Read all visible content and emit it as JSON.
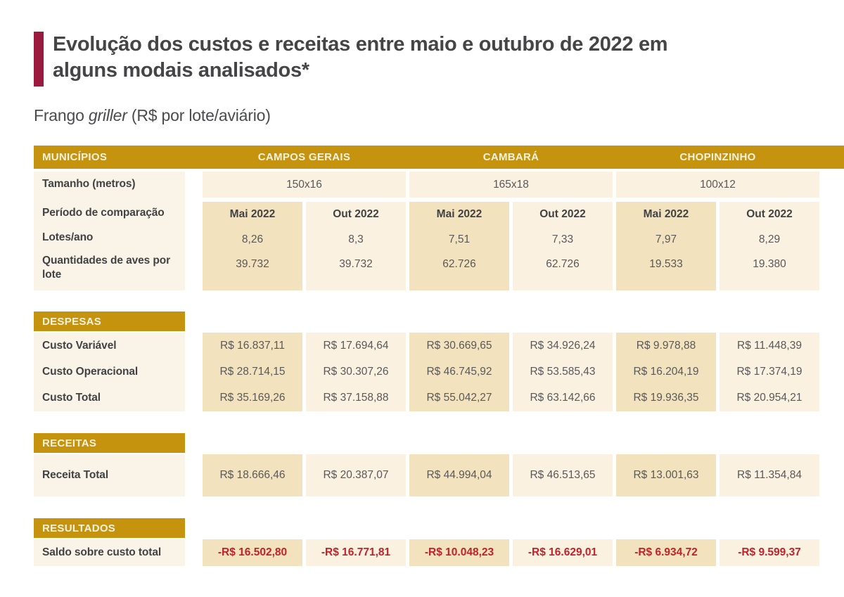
{
  "colors": {
    "accent_gold": "#C6930E",
    "accent_maroon": "#9B1B3E",
    "cell_cream_light": "#FAF1E0",
    "cell_cream_dark": "#F3E2BE",
    "label_cream": "#FAF4E8",
    "negative_red": "#C2222A",
    "title_gray": "#454547"
  },
  "title": {
    "line1": "Evolução dos custos e receitas entre maio e outubro de 2022 em",
    "line2": "alguns modais analisados*"
  },
  "subtitle": {
    "prefix": "Frango ",
    "italic": "griller",
    "suffix": " (R$ por lote/aviário)"
  },
  "chart_data": {
    "type": "table",
    "title": "Evolução dos custos e receitas entre maio e outubro de 2022 em alguns modais analisados*",
    "subtitle": "Frango griller (R$ por lote/aviário)",
    "header": {
      "label": "MUNICÍPIOS",
      "groups": [
        "CAMPOS GERAIS",
        "CAMBARÁ",
        "CHOPINZINHO"
      ]
    },
    "size_row": {
      "label": "Tamanho (metros)",
      "values": [
        "150x16",
        "165x18",
        "100x12"
      ]
    },
    "period_row": {
      "label": "Período de comparação",
      "values": [
        "Mai 2022",
        "Out 2022",
        "Mai 2022",
        "Out 2022",
        "Mai 2022",
        "Out 2022"
      ]
    },
    "info_rows": [
      {
        "label": "Lotes/ano",
        "values": [
          "8,26",
          "8,3",
          "7,51",
          "7,33",
          "7,97",
          "8,29"
        ]
      },
      {
        "label": "Quantidades de aves por lote",
        "values": [
          "39.732",
          "39.732",
          "62.726",
          "62.726",
          "19.533",
          "19.380"
        ]
      }
    ],
    "sections": [
      {
        "title": "DESPESAS",
        "rows": [
          {
            "label": "Custo Variável",
            "values": [
              "R$ 16.837,11",
              "R$ 17.694,64",
              "R$ 30.669,65",
              "R$ 34.926,24",
              "R$ 9.978,88",
              "R$ 11.448,39"
            ]
          },
          {
            "label": "Custo Operacional",
            "values": [
              "R$ 28.714,15",
              "R$ 30.307,26",
              "R$ 46.745,92",
              "R$ 53.585,43",
              "R$ 16.204,19",
              "R$ 17.374,19"
            ]
          },
          {
            "label": "Custo Total",
            "values": [
              "R$ 35.169,26",
              "R$ 37.158,88",
              "R$ 55.042,27",
              "R$ 63.142,66",
              "R$ 19.936,35",
              "R$ 20.954,21"
            ]
          }
        ]
      },
      {
        "title": "RECEITAS",
        "rows": [
          {
            "label": "Receita Total",
            "values": [
              "R$ 18.666,46",
              "R$ 20.387,07",
              "R$ 44.994,04",
              "R$ 46.513,65",
              "R$ 13.001,63",
              "R$ 11.354,84"
            ]
          }
        ]
      },
      {
        "title": "RESULTADOS",
        "rows": [
          {
            "label": "Saldo sobre custo total",
            "values": [
              "-R$ 16.502,80",
              "-R$ 16.771,81",
              "-R$ 10.048,23",
              "-R$ 16.629,01",
              "-R$ 6.934,72",
              "-R$ 9.599,37"
            ],
            "negative": true
          }
        ]
      }
    ]
  }
}
